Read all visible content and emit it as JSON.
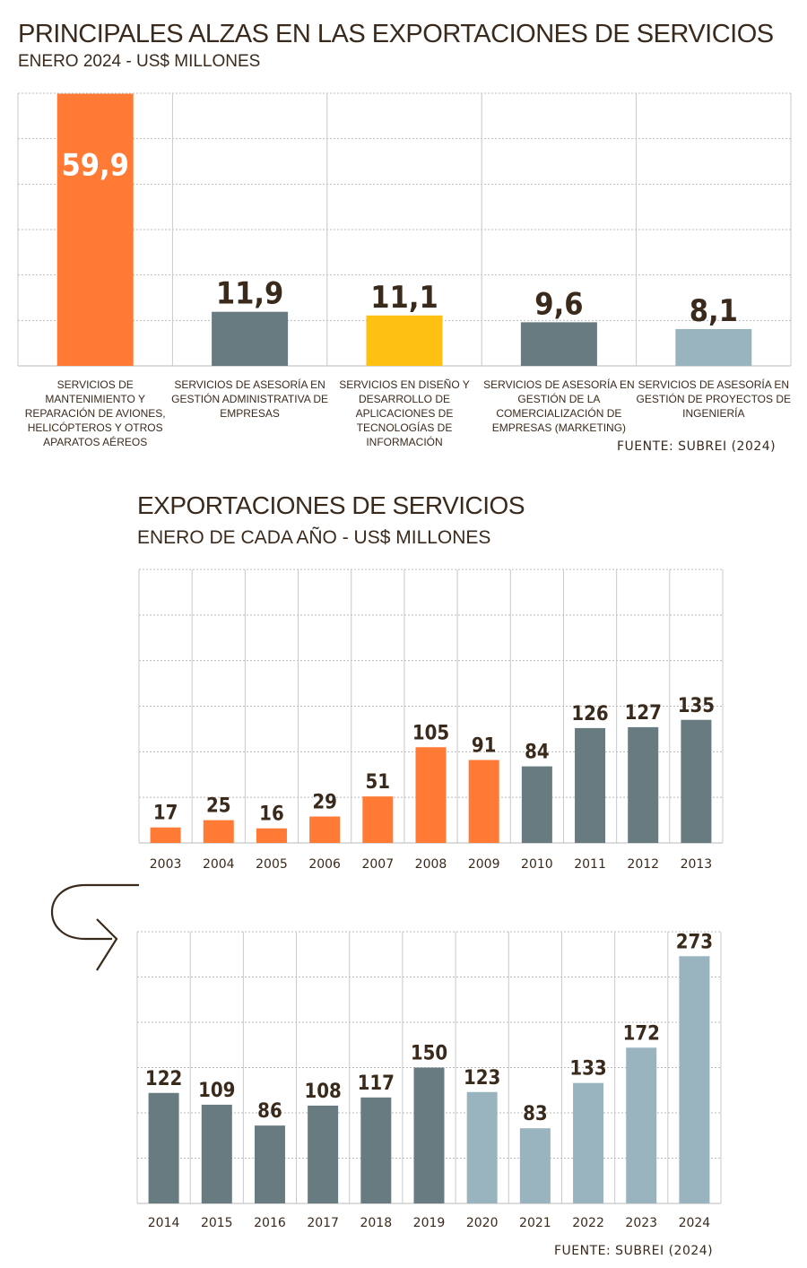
{
  "colors": {
    "orange": "#ff7a35",
    "dark_gray": "#687b80",
    "yellow": "#fec111",
    "light_blue": "#99b4bf",
    "text": "#3a2a1c"
  },
  "icons": {
    "continue_arrow": "curved-arrow-right-icon"
  },
  "chart_data": [
    {
      "type": "bar",
      "title": "PRINCIPALES ALZAS EN LAS EXPORTACIONES DE SERVICIOS",
      "subtitle": "ENERO 2024 - US$ MILLONES",
      "categories": [
        "SERVICIOS DE MANTENIMIENTO Y REPARACIÓN DE AVIONES, HELICÓPTEROS Y OTROS APARATOS AÉREOS",
        "SERVICIOS DE ASESORÍA EN GESTIÓN ADMINISTRATIVA DE EMPRESAS",
        "SERVICIOS EN DISEÑO Y DESARROLLO DE APLICACIONES DE TECNOLOGÍAS DE INFORMACIÓN",
        "SERVICIOS DE ASESORÍA EN GESTIÓN DE LA COMERCIALIZACIÓN DE EMPRESAS (MARKETING)",
        "SERVICIOS DE ASESORÍA EN GESTIÓN DE PROYECTOS DE INGENIERÍA"
      ],
      "values": [
        59.9,
        11.9,
        11.1,
        9.6,
        8.1
      ],
      "value_labels": [
        "59,9",
        "11,9",
        "11,1",
        "9,6",
        "8,1"
      ],
      "bar_colors": [
        "#ff7a35",
        "#687b80",
        "#fec111",
        "#687b80",
        "#99b4bf"
      ],
      "ylim": [
        0,
        60
      ],
      "grid": true,
      "source": "FUENTE: SUBREI (2024)"
    },
    {
      "type": "bar",
      "title": "EXPORTACIONES DE SERVICIOS",
      "subtitle": "ENERO DE CADA AÑO - US$ MILLONES",
      "categories": [
        "2003",
        "2004",
        "2005",
        "2006",
        "2007",
        "2008",
        "2009",
        "2010",
        "2011",
        "2012",
        "2013"
      ],
      "values": [
        17,
        25,
        16,
        29,
        51,
        105,
        91,
        84,
        126,
        127,
        135
      ],
      "bar_colors": [
        "#ff7a35",
        "#ff7a35",
        "#ff7a35",
        "#ff7a35",
        "#ff7a35",
        "#ff7a35",
        "#ff7a35",
        "#687b80",
        "#687b80",
        "#687b80",
        "#687b80"
      ],
      "ylim": [
        0,
        300
      ],
      "grid": true
    },
    {
      "type": "bar",
      "categories": [
        "2014",
        "2015",
        "2016",
        "2017",
        "2018",
        "2019",
        "2020",
        "2021",
        "2022",
        "2023",
        "2024"
      ],
      "values": [
        122,
        109,
        86,
        108,
        117,
        150,
        123,
        83,
        133,
        172,
        273
      ],
      "bar_colors": [
        "#687b80",
        "#687b80",
        "#687b80",
        "#687b80",
        "#687b80",
        "#687b80",
        "#99b4bf",
        "#99b4bf",
        "#99b4bf",
        "#99b4bf",
        "#99b4bf"
      ],
      "ylim": [
        0,
        300
      ],
      "grid": true,
      "source": "FUENTE: SUBREI (2024)"
    }
  ]
}
